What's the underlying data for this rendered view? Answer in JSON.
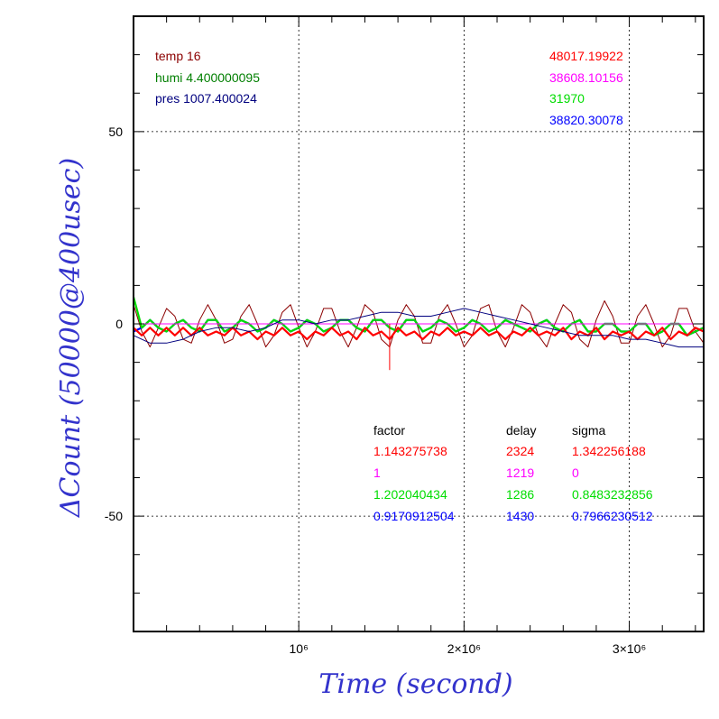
{
  "chart_data": {
    "type": "line",
    "xlabel": "Time (second)",
    "ylabel": "ΔCount (50000@400usec)",
    "xlim": [
      0,
      3450000
    ],
    "ylim": [
      -80,
      80
    ],
    "grid": true,
    "x_ticks": [
      {
        "value": 1000000,
        "label": "10⁶"
      },
      {
        "value": 2000000,
        "label": "2×10⁶"
      },
      {
        "value": 3000000,
        "label": "3×10⁶"
      }
    ],
    "y_ticks": [
      {
        "value": 50,
        "label": "50"
      },
      {
        "value": 0,
        "label": "0"
      },
      {
        "value": -50,
        "label": "-50"
      }
    ],
    "env_legend": [
      {
        "text": "temp 16",
        "color": "#8b0000"
      },
      {
        "text": "humi 4.400000095",
        "color": "#007f00"
      },
      {
        "text": "pres 1007.400024",
        "color": "#00007f"
      }
    ],
    "value_legend": [
      {
        "text": "48017.19922",
        "color": "#ff0000"
      },
      {
        "text": "38608.10156",
        "color": "#ff00ff"
      },
      {
        "text": "31970",
        "color": "#00dd00"
      },
      {
        "text": "38820.30078",
        "color": "#0000ff"
      }
    ],
    "stats": {
      "headers": [
        "factor",
        "delay",
        "sigma"
      ],
      "rows": [
        {
          "color": "#ff0000",
          "factor": "1.143275738",
          "delay": "2324",
          "sigma": "1.342256188"
        },
        {
          "color": "#ff00ff",
          "factor": "1",
          "delay": "1219",
          "sigma": "0"
        },
        {
          "color": "#00dd00",
          "factor": "1.202040434",
          "delay": "1286",
          "sigma": "0.8483232856"
        },
        {
          "color": "#0000ff",
          "factor": "0.9170912504",
          "delay": "1430",
          "sigma": "0.7966230512"
        }
      ]
    },
    "series": [
      {
        "color": "#8b0000",
        "kind": "temp",
        "x": [
          0,
          50000,
          100000,
          150000,
          200000,
          250000,
          300000,
          350000,
          400000,
          450000,
          500000,
          550000,
          600000,
          650000,
          700000,
          750000,
          800000,
          850000,
          900000,
          950000,
          1000000,
          1050000,
          1100000,
          1150000,
          1200000,
          1250000,
          1300000,
          1350000,
          1400000,
          1450000,
          1500000,
          1550000,
          1600000,
          1650000,
          1700000,
          1750000,
          1800000,
          1850000,
          1900000,
          1950000,
          2000000,
          2050000,
          2100000,
          2150000,
          2200000,
          2250000,
          2300000,
          2350000,
          2400000,
          2450000,
          2500000,
          2550000,
          2600000,
          2650000,
          2700000,
          2750000,
          2800000,
          2850000,
          2900000,
          2950000,
          3000000,
          3050000,
          3100000,
          3150000,
          3200000,
          3250000,
          3300000,
          3350000,
          3400000,
          3450000
        ],
        "y": [
          5,
          -2,
          -6,
          -1,
          4,
          2,
          -4,
          -5,
          1,
          5,
          1,
          -5,
          -4,
          2,
          5,
          0,
          -6,
          -3,
          3,
          5,
          -1,
          -6,
          -2,
          4,
          4,
          -2,
          -6,
          -1,
          5,
          3,
          -4,
          -6,
          1,
          5,
          2,
          -5,
          -5,
          2,
          5,
          0,
          -6,
          -3,
          4,
          5,
          -2,
          -6,
          -1,
          5,
          3,
          -3,
          -6,
          0,
          5,
          3,
          -4,
          -6,
          1,
          6,
          2,
          -5,
          -5,
          2,
          5,
          0,
          -6,
          -3,
          4,
          4,
          -2,
          -5
        ]
      },
      {
        "color": "#0000ff",
        "kind": "count",
        "x": [
          0,
          50000,
          100000,
          150000,
          200000,
          250000,
          300000,
          350000,
          400000,
          450000,
          500000,
          550000,
          600000,
          650000,
          700000,
          750000,
          800000,
          850000,
          900000,
          950000,
          1000000,
          1050000,
          1100000,
          1150000,
          1200000,
          1250000,
          1300000,
          1350000,
          1400000,
          1450000,
          1500000,
          1550000,
          1600000,
          1650000,
          1700000,
          1750000,
          1800000,
          1850000,
          1900000,
          1950000,
          2000000,
          2050000,
          2100000,
          2150000,
          2200000,
          2250000,
          2300000,
          2350000,
          2400000,
          2450000,
          2500000,
          2550000,
          2600000,
          2650000,
          2700000,
          2750000,
          2800000,
          2850000,
          2900000,
          2950000,
          3000000,
          3050000,
          3100000,
          3150000,
          3200000,
          3250000,
          3300000,
          3350000,
          3400000,
          3450000
        ],
        "y": [
          -2,
          -1,
          1,
          -1,
          -2,
          0,
          1,
          -1,
          -2,
          1,
          1,
          -2,
          -1,
          1,
          0,
          -2,
          -1,
          1,
          0,
          -2,
          -1,
          1,
          0,
          -2,
          -1,
          1,
          1,
          -1,
          -2,
          1,
          1,
          -1,
          -2,
          1,
          1,
          -2,
          -1,
          1,
          0,
          -2,
          -1,
          1,
          0,
          -2,
          -1,
          1,
          0,
          -1,
          -2,
          0,
          1,
          -1,
          -2,
          0,
          1,
          -2,
          -2,
          0,
          0,
          -2,
          -2,
          0,
          0,
          -3,
          -2,
          0,
          0,
          -3,
          -2,
          -1
        ]
      },
      {
        "color": "#00dd00",
        "kind": "count",
        "x": [
          0,
          50000,
          100000,
          150000,
          200000,
          250000,
          300000,
          350000,
          400000,
          450000,
          500000,
          550000,
          600000,
          650000,
          700000,
          750000,
          800000,
          850000,
          900000,
          950000,
          1000000,
          1050000,
          1100000,
          1150000,
          1200000,
          1250000,
          1300000,
          1350000,
          1400000,
          1450000,
          1500000,
          1550000,
          1600000,
          1650000,
          1700000,
          1750000,
          1800000,
          1850000,
          1900000,
          1950000,
          2000000,
          2050000,
          2100000,
          2150000,
          2200000,
          2250000,
          2300000,
          2350000,
          2400000,
          2450000,
          2500000,
          2550000,
          2600000,
          2650000,
          2700000,
          2750000,
          2800000,
          2850000,
          2900000,
          2950000,
          3000000,
          3050000,
          3100000,
          3150000,
          3200000,
          3250000,
          3300000,
          3350000,
          3400000,
          3450000
        ],
        "y": [
          7,
          -1,
          1,
          -1,
          -2,
          0,
          1,
          -1,
          -2,
          1,
          1,
          -2,
          -1,
          1,
          0,
          -2,
          -1,
          1,
          0,
          -2,
          -1,
          1,
          0,
          -2,
          -1,
          1,
          1,
          -1,
          -2,
          1,
          1,
          -1,
          -2,
          1,
          1,
          -2,
          -1,
          1,
          0,
          -2,
          -1,
          1,
          0,
          -2,
          -1,
          1,
          0,
          -1,
          -2,
          0,
          1,
          -1,
          -2,
          0,
          1,
          -2,
          -2,
          0,
          0,
          -2,
          -2,
          0,
          0,
          -3,
          -2,
          0,
          0,
          -3,
          -2,
          -1
        ]
      },
      {
        "color": "#ff00ff",
        "kind": "count",
        "x": [
          0,
          500000,
          1000000,
          1500000,
          2000000,
          2500000,
          3000000,
          3450000
        ],
        "y": [
          0,
          0,
          0,
          0,
          0,
          0,
          0,
          0
        ]
      },
      {
        "color": "#ff0000",
        "kind": "count",
        "x": [
          0,
          50000,
          100000,
          150000,
          200000,
          250000,
          300000,
          350000,
          400000,
          450000,
          500000,
          550000,
          600000,
          650000,
          700000,
          750000,
          800000,
          850000,
          900000,
          950000,
          1000000,
          1050000,
          1100000,
          1150000,
          1200000,
          1250000,
          1300000,
          1350000,
          1400000,
          1450000,
          1500000,
          1550000,
          1600000,
          1650000,
          1700000,
          1750000,
          1800000,
          1850000,
          1900000,
          1950000,
          2000000,
          2050000,
          2100000,
          2150000,
          2200000,
          2250000,
          2300000,
          2350000,
          2400000,
          2450000,
          2500000,
          2550000,
          2600000,
          2650000,
          2700000,
          2750000,
          2800000,
          2850000,
          2900000,
          2950000,
          3000000,
          3050000,
          3100000,
          3150000,
          3200000,
          3250000,
          3300000,
          3350000,
          3400000,
          3450000
        ],
        "y": [
          -1,
          -3,
          -1,
          -3,
          -1,
          -3,
          -1,
          -3,
          -1,
          -3,
          -2,
          -3,
          -1,
          -3,
          -2,
          -4,
          -2,
          -3,
          -1,
          -3,
          -2,
          -4,
          -2,
          -3,
          -1,
          -3,
          -2,
          -4,
          -1,
          -3,
          -2,
          -4,
          -1,
          -3,
          -2,
          -4,
          -2,
          -3,
          -1,
          -3,
          -2,
          -3,
          -1,
          -3,
          -2,
          -4,
          -2,
          -3,
          -1,
          -3,
          -2,
          -3,
          -1,
          -4,
          -2,
          -3,
          -1,
          -4,
          -2,
          -3,
          -2,
          -4,
          -2,
          -3,
          -1,
          -4,
          -2,
          -3,
          -1,
          -2
        ]
      },
      {
        "color": "#00007f",
        "kind": "pres",
        "x": [
          0,
          100000,
          200000,
          300000,
          400000,
          500000,
          600000,
          700000,
          800000,
          900000,
          1000000,
          1100000,
          1200000,
          1300000,
          1400000,
          1500000,
          1600000,
          1700000,
          1800000,
          1900000,
          2000000,
          2100000,
          2200000,
          2300000,
          2400000,
          2500000,
          2600000,
          2700000,
          2800000,
          2900000,
          3000000,
          3100000,
          3200000,
          3300000,
          3400000,
          3450000
        ],
        "y": [
          -3,
          -5,
          -5,
          -4,
          -2,
          -1,
          -1,
          -2,
          -1,
          1,
          1,
          0,
          1,
          1,
          2,
          3,
          3,
          2,
          2,
          3,
          4,
          3,
          2,
          1,
          0,
          -1,
          -2,
          -3,
          -3,
          -3,
          -4,
          -4,
          -5,
          -6,
          -6,
          -6
        ]
      },
      {
        "color": "#ff0000",
        "kind": "spike",
        "x": [
          1550000,
          1550000
        ],
        "y": [
          0,
          -12
        ]
      }
    ]
  }
}
